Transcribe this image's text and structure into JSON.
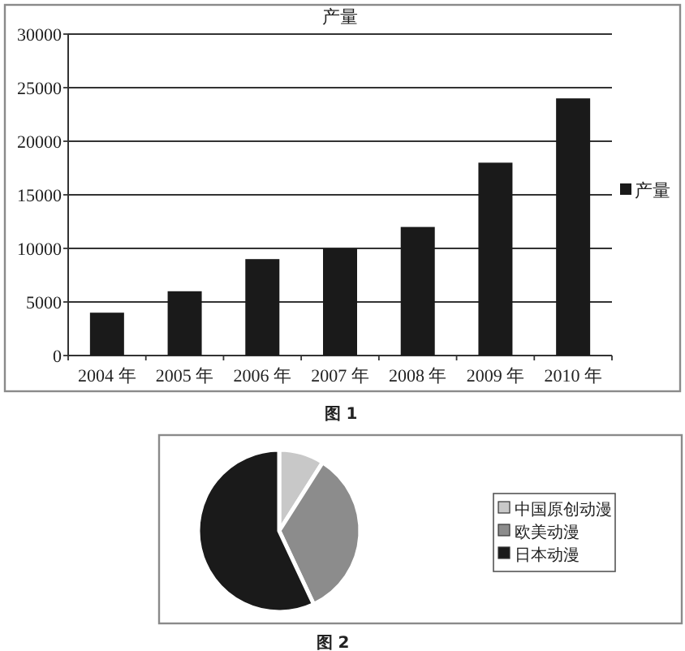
{
  "chart_data": [
    {
      "type": "bar",
      "title": "产量",
      "categories": [
        "2004 年",
        "2005 年",
        "2006 年",
        "2007 年",
        "2008 年",
        "2009 年",
        "2010 年"
      ],
      "series": [
        {
          "name": "产量",
          "color": "#1a1a1a",
          "values": [
            4000,
            6000,
            9000,
            10000,
            12000,
            18000,
            24000
          ]
        }
      ],
      "ylim": [
        0,
        30000
      ],
      "yticks": [
        0,
        5000,
        10000,
        15000,
        20000,
        25000,
        30000
      ],
      "grid": "y",
      "legend": "right",
      "annotations": [
        "图 1"
      ]
    },
    {
      "type": "pie",
      "categories": [
        "中国原创动漫",
        "欧美动漫",
        "日本动漫"
      ],
      "values": [
        9,
        34,
        57
      ],
      "colors": [
        "#c8c8c8",
        "#8c8c8c",
        "#1a1a1a"
      ],
      "legend": "right",
      "annotations": [
        "图 2"
      ]
    }
  ]
}
